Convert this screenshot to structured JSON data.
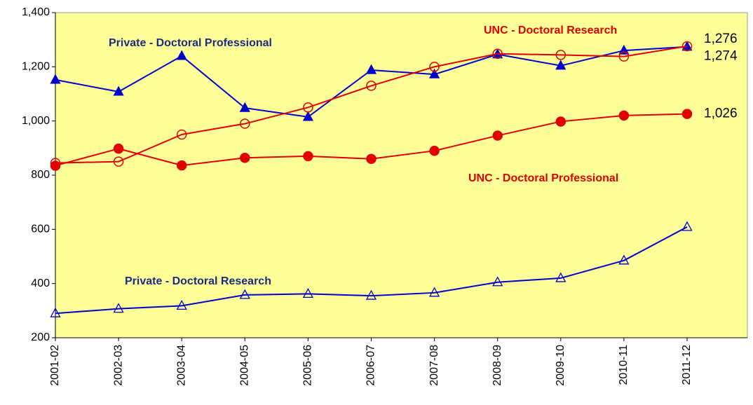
{
  "chart_data": {
    "type": "line",
    "categories": [
      "2001-02",
      "2002-03",
      "2003-04",
      "2004-05",
      "2005-06",
      "2006-07",
      "2007-08",
      "2008-09",
      "2009-10",
      "2010-11",
      "2011-12"
    ],
    "series": [
      {
        "name": "Private - Doctoral Professional",
        "color": "#0000cc",
        "marker": "triangle-filled",
        "values": [
          1152,
          1108,
          1240,
          1048,
          1015,
          1188,
          1172,
          1246,
          1204,
          1260,
          1274
        ],
        "value_labels": [
          null,
          null,
          null,
          null,
          null,
          null,
          null,
          null,
          null,
          null,
          "1,274"
        ]
      },
      {
        "name": "UNC - Doctoral Research",
        "color": "#e00000",
        "marker": "circle-open",
        "values": [
          845,
          850,
          950,
          990,
          1050,
          1130,
          1200,
          1248,
          1244,
          1238,
          1276
        ],
        "value_labels": [
          null,
          null,
          null,
          null,
          null,
          null,
          null,
          null,
          null,
          null,
          "1,276"
        ]
      },
      {
        "name": "UNC - Doctoral  Professional",
        "color": "#e00000",
        "marker": "circle-filled",
        "values": [
          835,
          898,
          836,
          864,
          870,
          860,
          890,
          946,
          998,
          1020,
          1026
        ],
        "value_labels": [
          null,
          null,
          null,
          null,
          null,
          null,
          null,
          null,
          null,
          null,
          "1,026"
        ]
      },
      {
        "name": "Private - Doctoral Research",
        "color": "#0000cc",
        "marker": "triangle-open",
        "values": [
          290,
          307,
          318,
          358,
          362,
          355,
          366,
          405,
          420,
          485,
          609
        ]
      }
    ],
    "ylim": [
      200,
      1400
    ],
    "yticks": [
      200,
      400,
      600,
      800,
      {
        "value": 1000,
        "label": "1,000"
      },
      {
        "value": 1200,
        "label": "1,200"
      },
      {
        "value": 1400,
        "label": "1,400"
      }
    ],
    "background": "#ffff99"
  }
}
